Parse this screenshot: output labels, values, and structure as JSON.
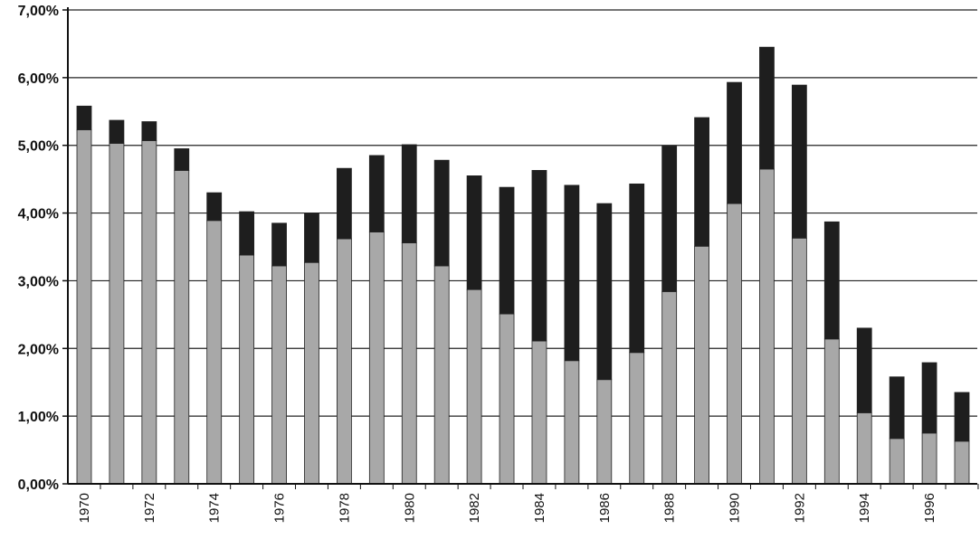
{
  "chart_data": {
    "type": "bar",
    "stacked": true,
    "title": "",
    "xlabel": "",
    "ylabel": "",
    "ylim": [
      0,
      7
    ],
    "y_ticks": [
      "0,00%",
      "1,00%",
      "2,00%",
      "3,00%",
      "4,00%",
      "5,00%",
      "6,00%",
      "7,00%"
    ],
    "grid": true,
    "legend": "none",
    "categories": [
      "1970",
      "1971",
      "1972",
      "1973",
      "1974",
      "1975",
      "1976",
      "1977",
      "1978",
      "1979",
      "1980",
      "1981",
      "1982",
      "1983",
      "1984",
      "1985",
      "1986",
      "1987",
      "1988",
      "1989",
      "1990",
      "1991",
      "1992",
      "1993",
      "1994",
      "1995",
      "1996",
      "1997"
    ],
    "x_tick_labels": [
      "1970",
      "1972",
      "1974",
      "1976",
      "1978",
      "1980",
      "1982",
      "1984",
      "1986",
      "1988",
      "1990",
      "1992",
      "1994",
      "1996"
    ],
    "series": [
      {
        "color": "#a8a8a8",
        "values": [
          5.23,
          5.03,
          5.07,
          4.63,
          3.89,
          3.38,
          3.22,
          3.27,
          3.62,
          3.72,
          3.56,
          3.22,
          2.87,
          2.51,
          2.11,
          1.82,
          1.54,
          1.94,
          2.84,
          3.51,
          4.14,
          4.65,
          3.63,
          2.14,
          1.05,
          0.67,
          0.75,
          0.63
        ]
      },
      {
        "color": "#1e1e1e",
        "values": [
          0.35,
          0.34,
          0.28,
          0.32,
          0.41,
          0.64,
          0.63,
          0.72,
          1.04,
          1.13,
          1.45,
          1.56,
          1.68,
          1.87,
          2.52,
          2.59,
          2.6,
          2.49,
          2.15,
          1.9,
          1.79,
          1.8,
          2.26,
          1.73,
          1.25,
          0.91,
          1.04,
          0.72
        ]
      }
    ]
  }
}
